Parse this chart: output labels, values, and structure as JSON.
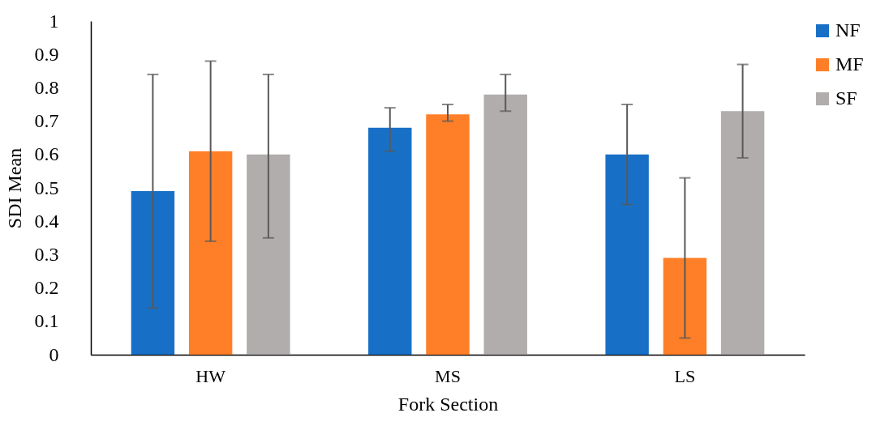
{
  "chart_data": {
    "type": "bar",
    "xlabel": "Fork Section",
    "ylabel": "SDI Mean",
    "categories": [
      "HW",
      "MS",
      "LS"
    ],
    "series": [
      {
        "name": "NF",
        "color": "#1870c6",
        "values": [
          0.49,
          0.68,
          0.6
        ],
        "errors": [
          [
            0.14,
            0.84
          ],
          [
            0.61,
            0.74
          ],
          [
            0.45,
            0.75
          ]
        ]
      },
      {
        "name": "MF",
        "color": "#fe7f27",
        "values": [
          0.61,
          0.72,
          0.29
        ],
        "errors": [
          [
            0.34,
            0.88
          ],
          [
            0.7,
            0.75
          ],
          [
            0.05,
            0.53
          ]
        ]
      },
      {
        "name": "SF",
        "color": "#b0adac",
        "values": [
          0.6,
          0.78,
          0.73
        ],
        "errors": [
          [
            0.35,
            0.84
          ],
          [
            0.73,
            0.84
          ],
          [
            0.59,
            0.87
          ]
        ]
      }
    ],
    "ylim": [
      0,
      1
    ],
    "yticks": [
      0,
      0.1,
      0.2,
      0.3,
      0.4,
      0.5,
      0.6,
      0.7,
      0.8,
      0.9,
      1
    ],
    "grid": false,
    "legend": "top right"
  }
}
